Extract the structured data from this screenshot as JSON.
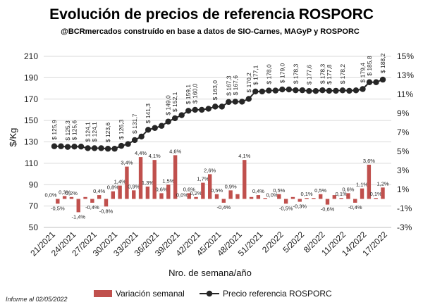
{
  "title": "Evolución de precios de referencia ROSPORC",
  "subtitle": "@BCRmercados construído en base a datos de SIO-Carnes, MAGyP y ROSPORC",
  "footer_note": "Informe al 02/05/2022",
  "colors": {
    "bar": "#c0504d",
    "line": "#262626",
    "grid": "#d9d9d9"
  },
  "chart_data": {
    "type": "bar+line",
    "xlabel": "Nro. de semana/año",
    "ylabel": "$/Kg",
    "ylim": [
      50,
      210
    ],
    "y_ticks": [
      "50",
      "70",
      "90",
      "110",
      "130",
      "150",
      "170",
      "190",
      "210"
    ],
    "y2lim": [
      -0.03,
      0.15
    ],
    "y2_ticks": [
      "-3%",
      "-1%",
      "1%",
      "3%",
      "5%",
      "7%",
      "9%",
      "11%",
      "13%",
      "15%"
    ],
    "x_tick_labels": [
      "21/2021",
      "24/2021",
      "27/2021",
      "30/2021",
      "33/2021",
      "36/2021",
      "39/2021",
      "42/2021",
      "45/2021",
      "48/2021",
      "51/2021",
      "2/2022",
      "5/2022",
      "8/2022",
      "11/2022",
      "14/2022",
      "17/2022"
    ],
    "grid": true,
    "legend_position": "bottom",
    "series": [
      {
        "name": "Variación semanal",
        "axis": "right",
        "kind": "bar",
        "values": [
          0.0,
          -0.005,
          0.003,
          0.002,
          -0.014,
          0.002,
          -0.004,
          0.004,
          -0.008,
          0.008,
          0.014,
          0.034,
          0.009,
          0.044,
          0.013,
          0.041,
          0.006,
          0.015,
          0.046,
          0.0,
          0.006,
          0.002,
          0.017,
          0.026,
          0.005,
          -0.004,
          0.009,
          0.005,
          0.041,
          0.002,
          0.004,
          0.001,
          0.0,
          0.005,
          -0.005,
          0.002,
          -0.003,
          0.001,
          0.001,
          0.005,
          -0.006,
          0.004,
          0.001,
          0.006,
          -0.004,
          0.011,
          0.036,
          0.001,
          0.012
        ],
        "labels": [
          "0,0%",
          "-0,5%",
          "0,3%",
          "0,2%",
          "-1,4%",
          "",
          "-0,4%",
          "0,4%",
          "-0,8%",
          "0,8%",
          "1,4%",
          "3,4%",
          "0,9%",
          "4,4%",
          "1,3%",
          "4,1%",
          "0,6%",
          "1,5%",
          "4,6%",
          "0,0%",
          "0,6%",
          "0,2%",
          "1,7%",
          "2,6%",
          "0,5%",
          "-0,4%",
          "0,9%",
          "",
          "4,1%",
          "",
          "0,4%",
          "",
          "0,0%",
          "0,5%",
          "-0,5%",
          "",
          "-0,3%",
          "0,1%",
          "",
          "0,5%",
          "-0,6%",
          "",
          "0,1%",
          "0,6%",
          "-0,4%",
          "1,1%",
          "3,6%",
          "0,1%",
          "1,2%"
        ]
      },
      {
        "name": "Precio referencia ROSPORC",
        "axis": "left",
        "kind": "line",
        "values": [
          125.9,
          125.9,
          125.3,
          125.6,
          125.6,
          124.1,
          124.1,
          124.1,
          123.6,
          123.6,
          126.3,
          128.0,
          131.7,
          135.0,
          141.3,
          143.0,
          145.0,
          149.0,
          152.1,
          155.0,
          159.1,
          160.0,
          160.0,
          161.0,
          163.0,
          163.0,
          167.3,
          167.6,
          167.6,
          170.2,
          177.1,
          177.1,
          178.0,
          178.0,
          179.0,
          179.0,
          178.3,
          178.3,
          177.6,
          177.6,
          178.3,
          177.8,
          177.8,
          178.2,
          177.8,
          178.2,
          179.4,
          185.8,
          185.8,
          188.2
        ],
        "labels": [
          "$ 125,9",
          "",
          "$ 125,3",
          "$ 125,6",
          "",
          "$ 124,1",
          "$ 124,1",
          "",
          "$ 123,6",
          "",
          "$ 126,3",
          "",
          "$ 131,7",
          "",
          "$ 141,3",
          "",
          "",
          "$ 149,0",
          "$ 152,1",
          "",
          "$ 159,1",
          "$ 160,0",
          "",
          "",
          "$ 163,0",
          "",
          "$ 167,3",
          "$ 167,6",
          "",
          "$ 170,2",
          "$ 177,1",
          "",
          "$ 178,0",
          "",
          "$ 179,0",
          "",
          "$ 178,3",
          "",
          "$ 177,6",
          "",
          "$ 178,3",
          "$ 177,8",
          "",
          "$ 178,2",
          "",
          "",
          "$ 179,4",
          "$ 185,8",
          "",
          "$ 188,2"
        ]
      }
    ]
  }
}
